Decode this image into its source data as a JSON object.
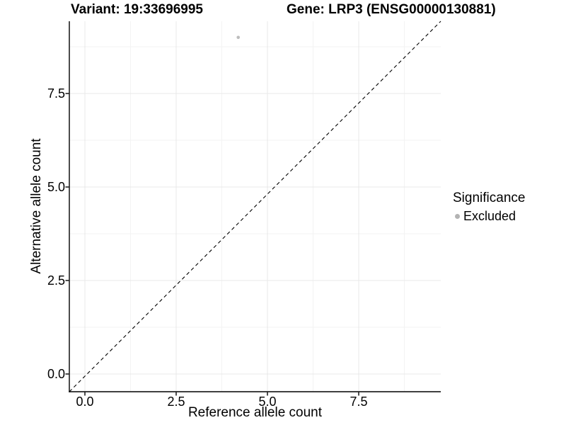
{
  "chart_data": {
    "type": "scatter",
    "title_left": "Variant: 19:33696995",
    "title_right": "Gene: LRP3 (ENSG00000130881)",
    "xlabel": "Reference allele count",
    "ylabel": "Alternative allele count",
    "xlim": [
      -0.45,
      9.75
    ],
    "ylim": [
      -0.47,
      9.43
    ],
    "xticks": {
      "values": [
        0,
        2.5,
        5,
        7.5
      ],
      "labels": [
        "0.0",
        "2.5",
        "5.0",
        "7.5"
      ]
    },
    "yticks": {
      "values": [
        0,
        2.5,
        5,
        7.5
      ],
      "labels": [
        "0.0",
        "2.5",
        "5.0",
        "7.5"
      ]
    },
    "minor_gridlines": {
      "x": [
        1.25,
        3.75,
        6.25,
        8.75
      ],
      "y": [
        1.25,
        3.75,
        6.25,
        8.75
      ]
    },
    "grid": "major and minor, light grey on white panel",
    "reference_line": {
      "type": "identity y=x",
      "style": "dashed",
      "color": "#000000"
    },
    "series": [
      {
        "name": "Excluded",
        "color": "#bcbcbc",
        "point_radius": 2.3,
        "points": [
          {
            "x": 4.2,
            "y": 9.0
          }
        ]
      }
    ],
    "legend": {
      "title": "Significance",
      "position": "right",
      "items": [
        {
          "label": "Excluded",
          "color": "#b3b3b3",
          "marker": "circle"
        }
      ]
    }
  },
  "colors": {
    "background": "#ffffff",
    "grid_major": "#e8e8e8",
    "grid_minor": "#f3f3f3",
    "axis_line": "#000000",
    "text": "#000000"
  }
}
